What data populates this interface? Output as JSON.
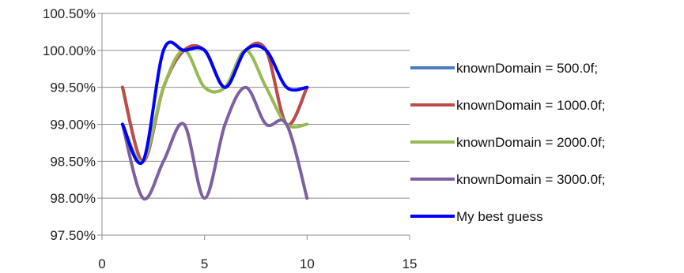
{
  "chart_data": {
    "type": "line",
    "title": "",
    "xlabel": "",
    "ylabel": "",
    "xlim": [
      0,
      15
    ],
    "ylim": [
      97.5,
      100.5
    ],
    "x_ticks": [
      0,
      5,
      10,
      15
    ],
    "x_tick_labels": [
      "0",
      "5",
      "10",
      "15"
    ],
    "y_ticks": [
      97.5,
      98.0,
      98.5,
      99.0,
      99.5,
      100.0,
      100.5
    ],
    "y_tick_labels": [
      "97.50%",
      "98.00%",
      "98.50%",
      "99.00%",
      "99.50%",
      "100.00%",
      "100.50%"
    ],
    "grid": "horizontal",
    "legend_position": "right",
    "smooth": true,
    "series": [
      {
        "name": "knownDomain = 500.0f;",
        "color": "#4a7ebb",
        "x": [
          1,
          2,
          3,
          4,
          5,
          6,
          7,
          8,
          9,
          10
        ],
        "y": [
          99.5,
          98.5,
          99.5,
          100.0,
          100.0,
          99.5,
          100.0,
          100.0,
          99.0,
          99.5
        ]
      },
      {
        "name": "knownDomain = 1000.0f;",
        "color": "#be4b48",
        "x": [
          1,
          2,
          3,
          4,
          5,
          6,
          7,
          8,
          9,
          10
        ],
        "y": [
          99.5,
          98.5,
          99.5,
          100.0,
          100.0,
          99.5,
          100.0,
          100.0,
          99.0,
          99.5
        ]
      },
      {
        "name": "knownDomain = 2000.0f;",
        "color": "#98b954",
        "x": [
          1,
          2,
          3,
          4,
          5,
          6,
          7,
          8,
          9,
          10
        ],
        "y": [
          99.0,
          98.5,
          99.5,
          100.0,
          99.5,
          99.5,
          100.0,
          99.5,
          99.0,
          99.0
        ]
      },
      {
        "name": "knownDomain = 3000.0f;",
        "color": "#7d60a0",
        "x": [
          1,
          2,
          3,
          4,
          5,
          6,
          7,
          8,
          9,
          10
        ],
        "y": [
          99.0,
          98.0,
          98.5,
          99.0,
          98.0,
          99.0,
          99.5,
          99.0,
          99.0,
          98.0
        ]
      },
      {
        "name": "My best guess",
        "color": "#0000ff",
        "x": [
          1,
          2,
          3,
          4,
          5,
          6,
          7,
          8,
          9,
          10
        ],
        "y": [
          99.0,
          98.5,
          100.0,
          100.0,
          100.0,
          99.5,
          100.0,
          100.0,
          99.5,
          99.5
        ]
      }
    ]
  }
}
